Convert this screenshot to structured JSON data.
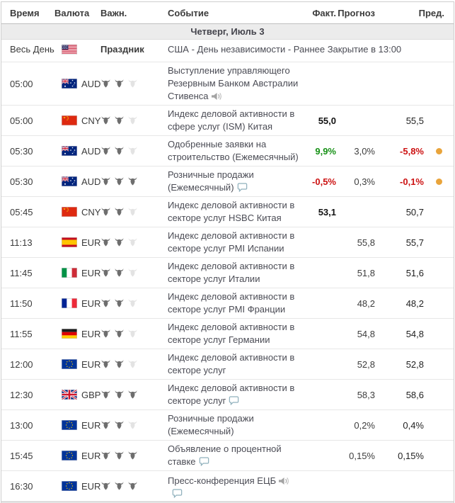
{
  "header": {
    "time": "Время",
    "currency": "Валюта",
    "importance": "Важн.",
    "event": "Событие",
    "actual": "Факт.",
    "forecast": "Прогноз",
    "previous": "Пред."
  },
  "date_header": "Четверг, Июль 3",
  "colors": {
    "green": "#169116",
    "red": "#cc1212",
    "dot": "#e9a43b"
  },
  "rows": [
    {
      "time": "Весь День",
      "flag": "us",
      "currency": "",
      "holiday_label": "Праздник",
      "event": "США - День независимости - Раннее Закрытие в 13:00",
      "holiday": true
    },
    {
      "time": "05:00",
      "flag": "au",
      "currency": "AUD",
      "importance": 2,
      "event": "Выступление управляющего Резервным Банком Австралии Стивенса",
      "icons": [
        "speaker"
      ]
    },
    {
      "time": "05:00",
      "flag": "cn",
      "currency": "CNY",
      "importance": 2,
      "event": "Индекс деловой активности в сфере услуг (ISM) Китая",
      "actual": {
        "text": "55,0",
        "style": "bold"
      },
      "previous": "55,5"
    },
    {
      "time": "05:30",
      "flag": "au",
      "currency": "AUD",
      "importance": 2,
      "event": "Одобренные заявки на строительство (Ежемесячный)",
      "actual": {
        "text": "9,9%",
        "style": "green"
      },
      "forecast": "3,0%",
      "previous": "-5,8%",
      "previous_style": "red",
      "dot": true
    },
    {
      "time": "05:30",
      "flag": "au",
      "currency": "AUD",
      "importance": 3,
      "event": "Розничные продажи (Ежемесячный)",
      "icons": [
        "bubble"
      ],
      "actual": {
        "text": "-0,5%",
        "style": "red"
      },
      "forecast": "0,3%",
      "previous": "-0,1%",
      "previous_style": "red",
      "dot": true
    },
    {
      "time": "05:45",
      "flag": "cn",
      "currency": "CNY",
      "importance": 2,
      "event": "Индекс деловой активности в секторе услуг HSBC Китая",
      "actual": {
        "text": "53,1",
        "style": "bold"
      },
      "previous": "50,7"
    },
    {
      "time": "11:13",
      "flag": "es",
      "currency": "EUR",
      "importance": 2,
      "event": "Индекс деловой активности в секторе услуг PMI Испании",
      "forecast": "55,8",
      "previous": "55,7"
    },
    {
      "time": "11:45",
      "flag": "it",
      "currency": "EUR",
      "importance": 2,
      "event": "Индекс деловой активности в секторе услуг Италии",
      "forecast": "51,8",
      "previous": "51,6"
    },
    {
      "time": "11:50",
      "flag": "fr",
      "currency": "EUR",
      "importance": 2,
      "event": "Индекс деловой активности в секторе услуг PMI Франции",
      "forecast": "48,2",
      "previous": "48,2"
    },
    {
      "time": "11:55",
      "flag": "de",
      "currency": "EUR",
      "importance": 2,
      "event": "Индекс деловой активности в секторе услуг Германии",
      "forecast": "54,8",
      "previous": "54,8"
    },
    {
      "time": "12:00",
      "flag": "eu",
      "currency": "EUR",
      "importance": 2,
      "event": "Индекс деловой активности в секторе услуг",
      "forecast": "52,8",
      "previous": "52,8"
    },
    {
      "time": "12:30",
      "flag": "gb",
      "currency": "GBP",
      "importance": 3,
      "event": "Индекс деловой активности в секторе услуг",
      "icons": [
        "bubble"
      ],
      "forecast": "58,3",
      "previous": "58,6"
    },
    {
      "time": "13:00",
      "flag": "eu",
      "currency": "EUR",
      "importance": 2,
      "event": "Розничные продажи (Ежемесячный)",
      "forecast": "0,2%",
      "previous": "0,4%"
    },
    {
      "time": "15:45",
      "flag": "eu",
      "currency": "EUR",
      "importance": 3,
      "event": "Объявление о процентной ставке",
      "icons": [
        "bubble"
      ],
      "forecast": "0,15%",
      "previous": "0,15%"
    },
    {
      "time": "16:30",
      "flag": "eu",
      "currency": "EUR",
      "importance": 3,
      "event": "Пресс-конференция ЕЦБ",
      "icons": [
        "speaker"
      ],
      "icons_newline": [
        "bubble"
      ]
    }
  ]
}
